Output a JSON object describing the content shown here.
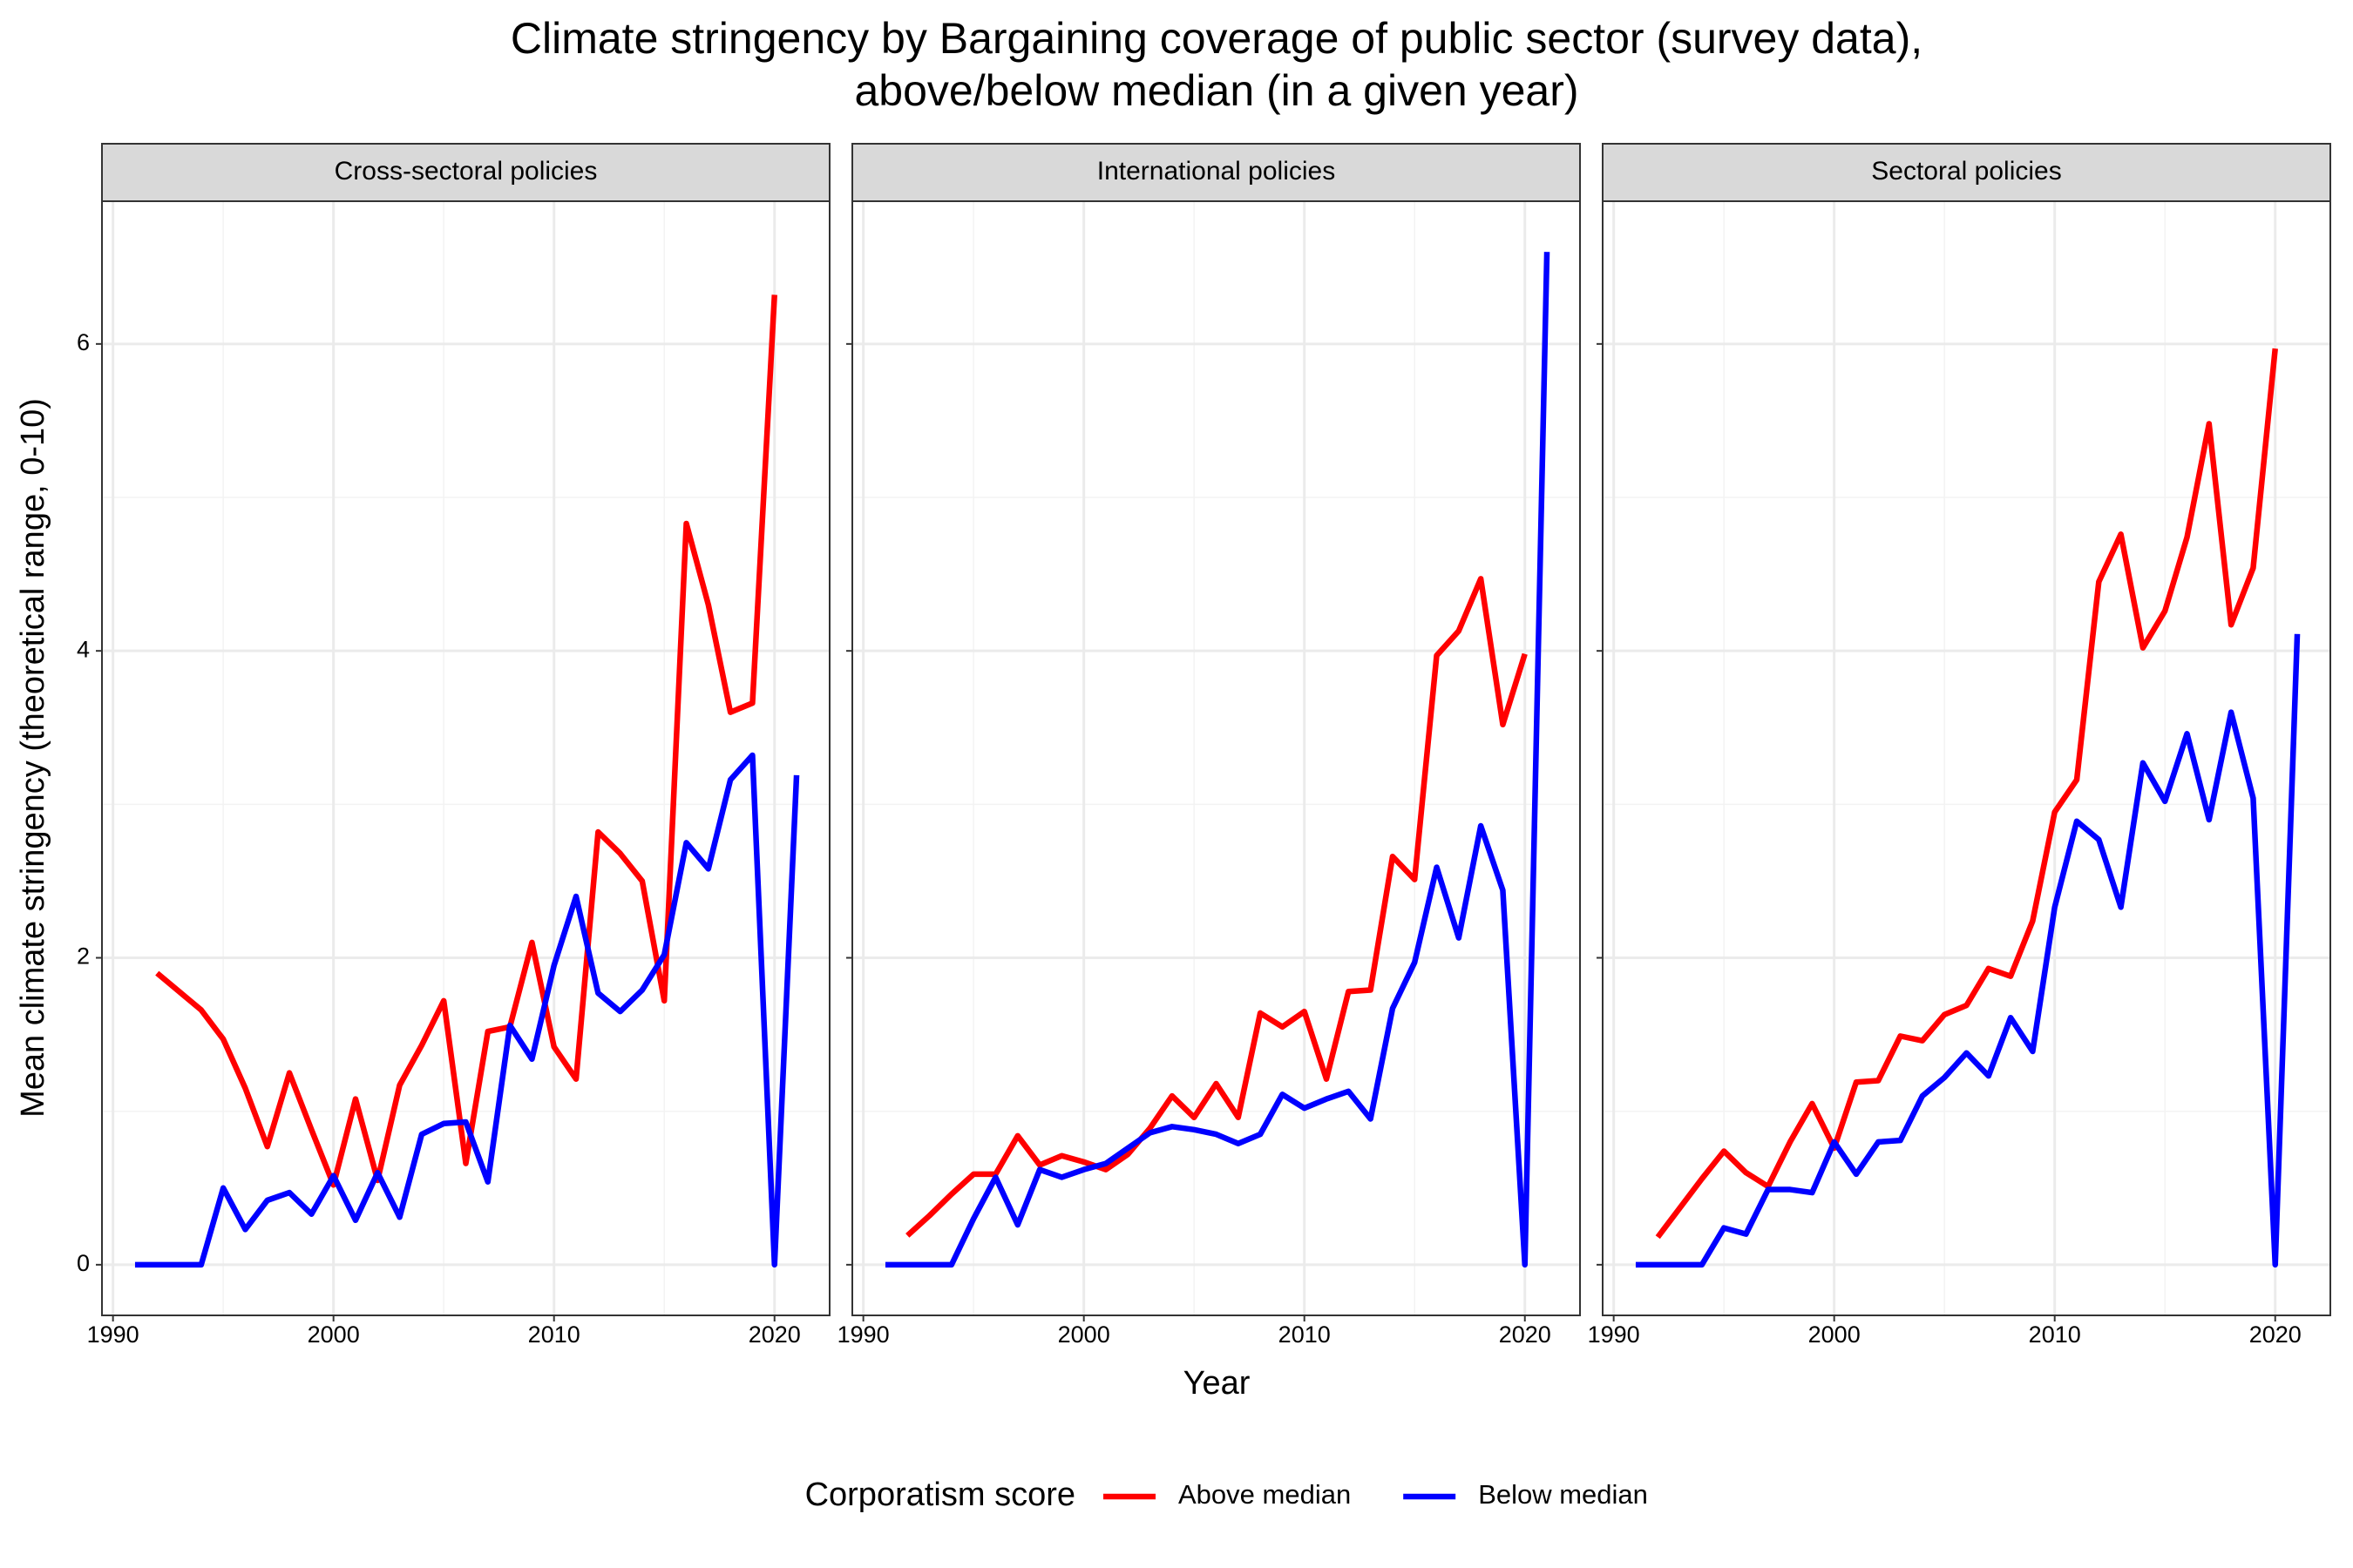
{
  "chart_data": {
    "type": "line",
    "title": "Climate stringency by Bargaining coverage of public sector (survey data),",
    "subtitle": "above/below median (in a given year)",
    "x_label": "Year",
    "y_label": "Mean climate stringency (theoretical range, 0-10)",
    "legend_title": "Corporatism score",
    "legend_position": "bottom",
    "grid": true,
    "minor_grid": true,
    "x": [
      1991,
      1992,
      1993,
      1994,
      1995,
      1996,
      1997,
      1998,
      1999,
      2000,
      2001,
      2002,
      2003,
      2004,
      2005,
      2006,
      2007,
      2008,
      2009,
      2010,
      2011,
      2012,
      2013,
      2014,
      2015,
      2016,
      2017,
      2018,
      2019,
      2020,
      2021
    ],
    "xlim": [
      1989.5,
      2022.5
    ],
    "xticks": [
      1990,
      2000,
      2010,
      2020
    ],
    "ylim": [
      -0.33,
      6.93
    ],
    "yticks": [
      0,
      2,
      4,
      6
    ],
    "facets": [
      {
        "title": "Cross-sectoral policies",
        "series": [
          {
            "name": "Above median",
            "color": "#ff0000",
            "values": [
              null,
              1.9,
              1.78,
              1.66,
              1.47,
              1.15,
              0.77,
              1.25,
              0.88,
              0.52,
              1.08,
              0.55,
              1.17,
              1.43,
              1.72,
              0.66,
              1.52,
              1.55,
              2.1,
              1.42,
              1.21,
              2.82,
              2.68,
              2.5,
              1.72,
              4.83,
              4.3,
              3.6,
              3.66,
              6.32,
              null
            ]
          },
          {
            "name": "Below median",
            "color": "#0000ff",
            "values": [
              0,
              0,
              0,
              0,
              0.5,
              0.23,
              0.42,
              0.47,
              0.33,
              0.58,
              0.29,
              0.6,
              0.31,
              0.85,
              0.92,
              0.93,
              0.54,
              1.56,
              1.34,
              1.95,
              2.4,
              1.77,
              1.65,
              1.79,
              2.02,
              2.75,
              2.58,
              3.16,
              3.32,
              0,
              3.19
            ]
          }
        ]
      },
      {
        "title": "International policies",
        "series": [
          {
            "name": "Above median",
            "color": "#ff0000",
            "values": [
              null,
              0.19,
              0.32,
              0.46,
              0.59,
              0.59,
              0.84,
              0.65,
              0.71,
              0.67,
              0.62,
              0.72,
              0.89,
              1.1,
              0.96,
              1.18,
              0.96,
              1.64,
              1.55,
              1.65,
              1.21,
              1.78,
              1.79,
              2.66,
              2.51,
              3.97,
              4.13,
              4.47,
              3.52,
              3.98,
              null
            ]
          },
          {
            "name": "Below median",
            "color": "#0000ff",
            "values": [
              0,
              0,
              0,
              0,
              0.3,
              0.57,
              0.26,
              0.62,
              0.57,
              0.62,
              0.66,
              0.76,
              0.86,
              0.9,
              0.88,
              0.85,
              0.79,
              0.85,
              1.11,
              1.02,
              1.08,
              1.13,
              0.95,
              1.67,
              1.97,
              2.59,
              2.13,
              2.86,
              2.44,
              0,
              6.6
            ]
          }
        ]
      },
      {
        "title": "Sectoral policies",
        "series": [
          {
            "name": "Above median",
            "color": "#ff0000",
            "values": [
              null,
              0.18,
              0.37,
              0.56,
              0.74,
              0.6,
              0.51,
              0.8,
              1.05,
              0.76,
              1.19,
              1.2,
              1.49,
              1.46,
              1.63,
              1.69,
              1.93,
              1.88,
              2.24,
              2.95,
              3.16,
              4.45,
              4.76,
              4.02,
              4.26,
              4.74,
              5.48,
              4.17,
              4.54,
              5.97,
              null
            ]
          },
          {
            "name": "Below median",
            "color": "#0000ff",
            "values": [
              0,
              0,
              0,
              0,
              0.24,
              0.2,
              0.49,
              0.49,
              0.47,
              0.8,
              0.59,
              0.8,
              0.81,
              1.1,
              1.22,
              1.38,
              1.23,
              1.61,
              1.39,
              2.33,
              2.89,
              2.77,
              2.33,
              3.27,
              3.02,
              3.46,
              2.9,
              3.6,
              3.04,
              0,
              4.11
            ]
          }
        ]
      }
    ]
  }
}
